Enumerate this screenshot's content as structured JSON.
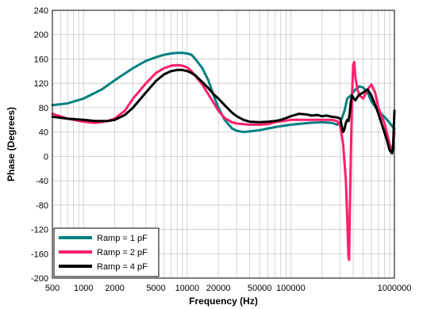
{
  "chart_data": {
    "type": "line",
    "title": "",
    "xlabel": "Frequency (Hz)",
    "ylabel": "Phase (Degrees)",
    "xscale": "log",
    "xlim": [
      500,
      1000000
    ],
    "ylim": [
      -200,
      240
    ],
    "grid": true,
    "legend_position": "bottom-left",
    "x_tick_labels": [
      "500",
      "1000",
      "2000",
      "5000",
      "10000",
      "20000",
      "50000",
      "100000",
      "1000000"
    ],
    "y_tick_labels": [
      "-200",
      "-160",
      "-120",
      "-80",
      "-40",
      "0",
      "40",
      "80",
      "120",
      "160",
      "200",
      "240"
    ],
    "series": [
      {
        "name": "Ramp = 1 pF",
        "color": "#008080",
        "points": [
          [
            500,
            84
          ],
          [
            700,
            87
          ],
          [
            1000,
            95
          ],
          [
            1500,
            110
          ],
          [
            2000,
            125
          ],
          [
            3000,
            145
          ],
          [
            4000,
            157
          ],
          [
            5000,
            163
          ],
          [
            6000,
            167
          ],
          [
            7000,
            169
          ],
          [
            8000,
            170
          ],
          [
            9000,
            170
          ],
          [
            10000,
            169
          ],
          [
            11000,
            167
          ],
          [
            12000,
            160
          ],
          [
            14000,
            145
          ],
          [
            16000,
            125
          ],
          [
            18000,
            100
          ],
          [
            20000,
            80
          ],
          [
            23000,
            60
          ],
          [
            27000,
            46
          ],
          [
            30000,
            42
          ],
          [
            35000,
            40
          ],
          [
            40000,
            41
          ],
          [
            50000,
            43
          ],
          [
            70000,
            48
          ],
          [
            100000,
            52
          ],
          [
            150000,
            55
          ],
          [
            200000,
            56
          ],
          [
            250000,
            55
          ],
          [
            280000,
            52
          ],
          [
            300000,
            55
          ],
          [
            330000,
            75
          ],
          [
            350000,
            95
          ],
          [
            380000,
            100
          ],
          [
            420000,
            110
          ],
          [
            460000,
            115
          ],
          [
            500000,
            113
          ],
          [
            550000,
            105
          ],
          [
            600000,
            90
          ],
          [
            700000,
            75
          ],
          [
            800000,
            65
          ],
          [
            900000,
            55
          ],
          [
            1000000,
            45
          ]
        ]
      },
      {
        "name": "Ramp = 2 pF",
        "color": "#ff1f6b",
        "points": [
          [
            500,
            70
          ],
          [
            700,
            62
          ],
          [
            1000,
            57
          ],
          [
            1300,
            55
          ],
          [
            1700,
            58
          ],
          [
            2000,
            62
          ],
          [
            2500,
            75
          ],
          [
            3000,
            95
          ],
          [
            4000,
            120
          ],
          [
            5000,
            137
          ],
          [
            6000,
            145
          ],
          [
            7000,
            149
          ],
          [
            8000,
            150
          ],
          [
            9000,
            149
          ],
          [
            10000,
            146
          ],
          [
            11000,
            140
          ],
          [
            12000,
            132
          ],
          [
            14000,
            118
          ],
          [
            16000,
            102
          ],
          [
            18000,
            88
          ],
          [
            20000,
            75
          ],
          [
            23000,
            63
          ],
          [
            27000,
            56
          ],
          [
            30000,
            54
          ],
          [
            40000,
            52
          ],
          [
            50000,
            52
          ],
          [
            60000,
            53
          ],
          [
            70000,
            56
          ],
          [
            100000,
            60
          ],
          [
            150000,
            60
          ],
          [
            200000,
            60
          ],
          [
            250000,
            60
          ],
          [
            280000,
            58
          ],
          [
            300000,
            50
          ],
          [
            320000,
            20
          ],
          [
            340000,
            -40
          ],
          [
            350000,
            -100
          ],
          [
            360000,
            -165
          ],
          [
            365000,
            -170
          ],
          [
            370000,
            -100
          ],
          [
            380000,
            0
          ],
          [
            390000,
            100
          ],
          [
            400000,
            150
          ],
          [
            410000,
            155
          ],
          [
            420000,
            130
          ],
          [
            440000,
            110
          ],
          [
            460000,
            100
          ],
          [
            500000,
            95
          ],
          [
            550000,
            110
          ],
          [
            600000,
            118
          ],
          [
            650000,
            105
          ],
          [
            700000,
            80
          ],
          [
            800000,
            55
          ],
          [
            900000,
            20
          ],
          [
            950000,
            5
          ],
          [
            1000000,
            40
          ]
        ]
      },
      {
        "name": "Ramp = 4 pF",
        "color": "#000000",
        "points": [
          [
            500,
            65
          ],
          [
            700,
            62
          ],
          [
            1000,
            60
          ],
          [
            1300,
            58
          ],
          [
            1700,
            58
          ],
          [
            2000,
            60
          ],
          [
            2500,
            68
          ],
          [
            3000,
            80
          ],
          [
            4000,
            105
          ],
          [
            5000,
            124
          ],
          [
            6000,
            135
          ],
          [
            7000,
            140
          ],
          [
            8000,
            142
          ],
          [
            9000,
            142
          ],
          [
            10000,
            140
          ],
          [
            11000,
            137
          ],
          [
            12000,
            133
          ],
          [
            14000,
            122
          ],
          [
            16000,
            112
          ],
          [
            18000,
            102
          ],
          [
            20000,
            95
          ],
          [
            23000,
            84
          ],
          [
            27000,
            72
          ],
          [
            30000,
            66
          ],
          [
            35000,
            60
          ],
          [
            40000,
            57
          ],
          [
            50000,
            56
          ],
          [
            60000,
            57
          ],
          [
            70000,
            58
          ],
          [
            80000,
            60
          ],
          [
            90000,
            63
          ],
          [
            100000,
            66
          ],
          [
            120000,
            70
          ],
          [
            140000,
            69
          ],
          [
            160000,
            67
          ],
          [
            180000,
            68
          ],
          [
            200000,
            66
          ],
          [
            220000,
            67
          ],
          [
            250000,
            65
          ],
          [
            280000,
            64
          ],
          [
            300000,
            62
          ],
          [
            310000,
            50
          ],
          [
            320000,
            40
          ],
          [
            330000,
            45
          ],
          [
            340000,
            55
          ],
          [
            350000,
            60
          ],
          [
            360000,
            58
          ],
          [
            370000,
            70
          ],
          [
            380000,
            90
          ],
          [
            390000,
            100
          ],
          [
            400000,
            97
          ],
          [
            420000,
            92
          ],
          [
            450000,
            100
          ],
          [
            500000,
            105
          ],
          [
            550000,
            110
          ],
          [
            600000,
            100
          ],
          [
            650000,
            85
          ],
          [
            700000,
            70
          ],
          [
            800000,
            40
          ],
          [
            850000,
            25
          ],
          [
            900000,
            10
          ],
          [
            950000,
            5
          ],
          [
            970000,
            15
          ],
          [
            1000000,
            75
          ]
        ]
      }
    ]
  }
}
